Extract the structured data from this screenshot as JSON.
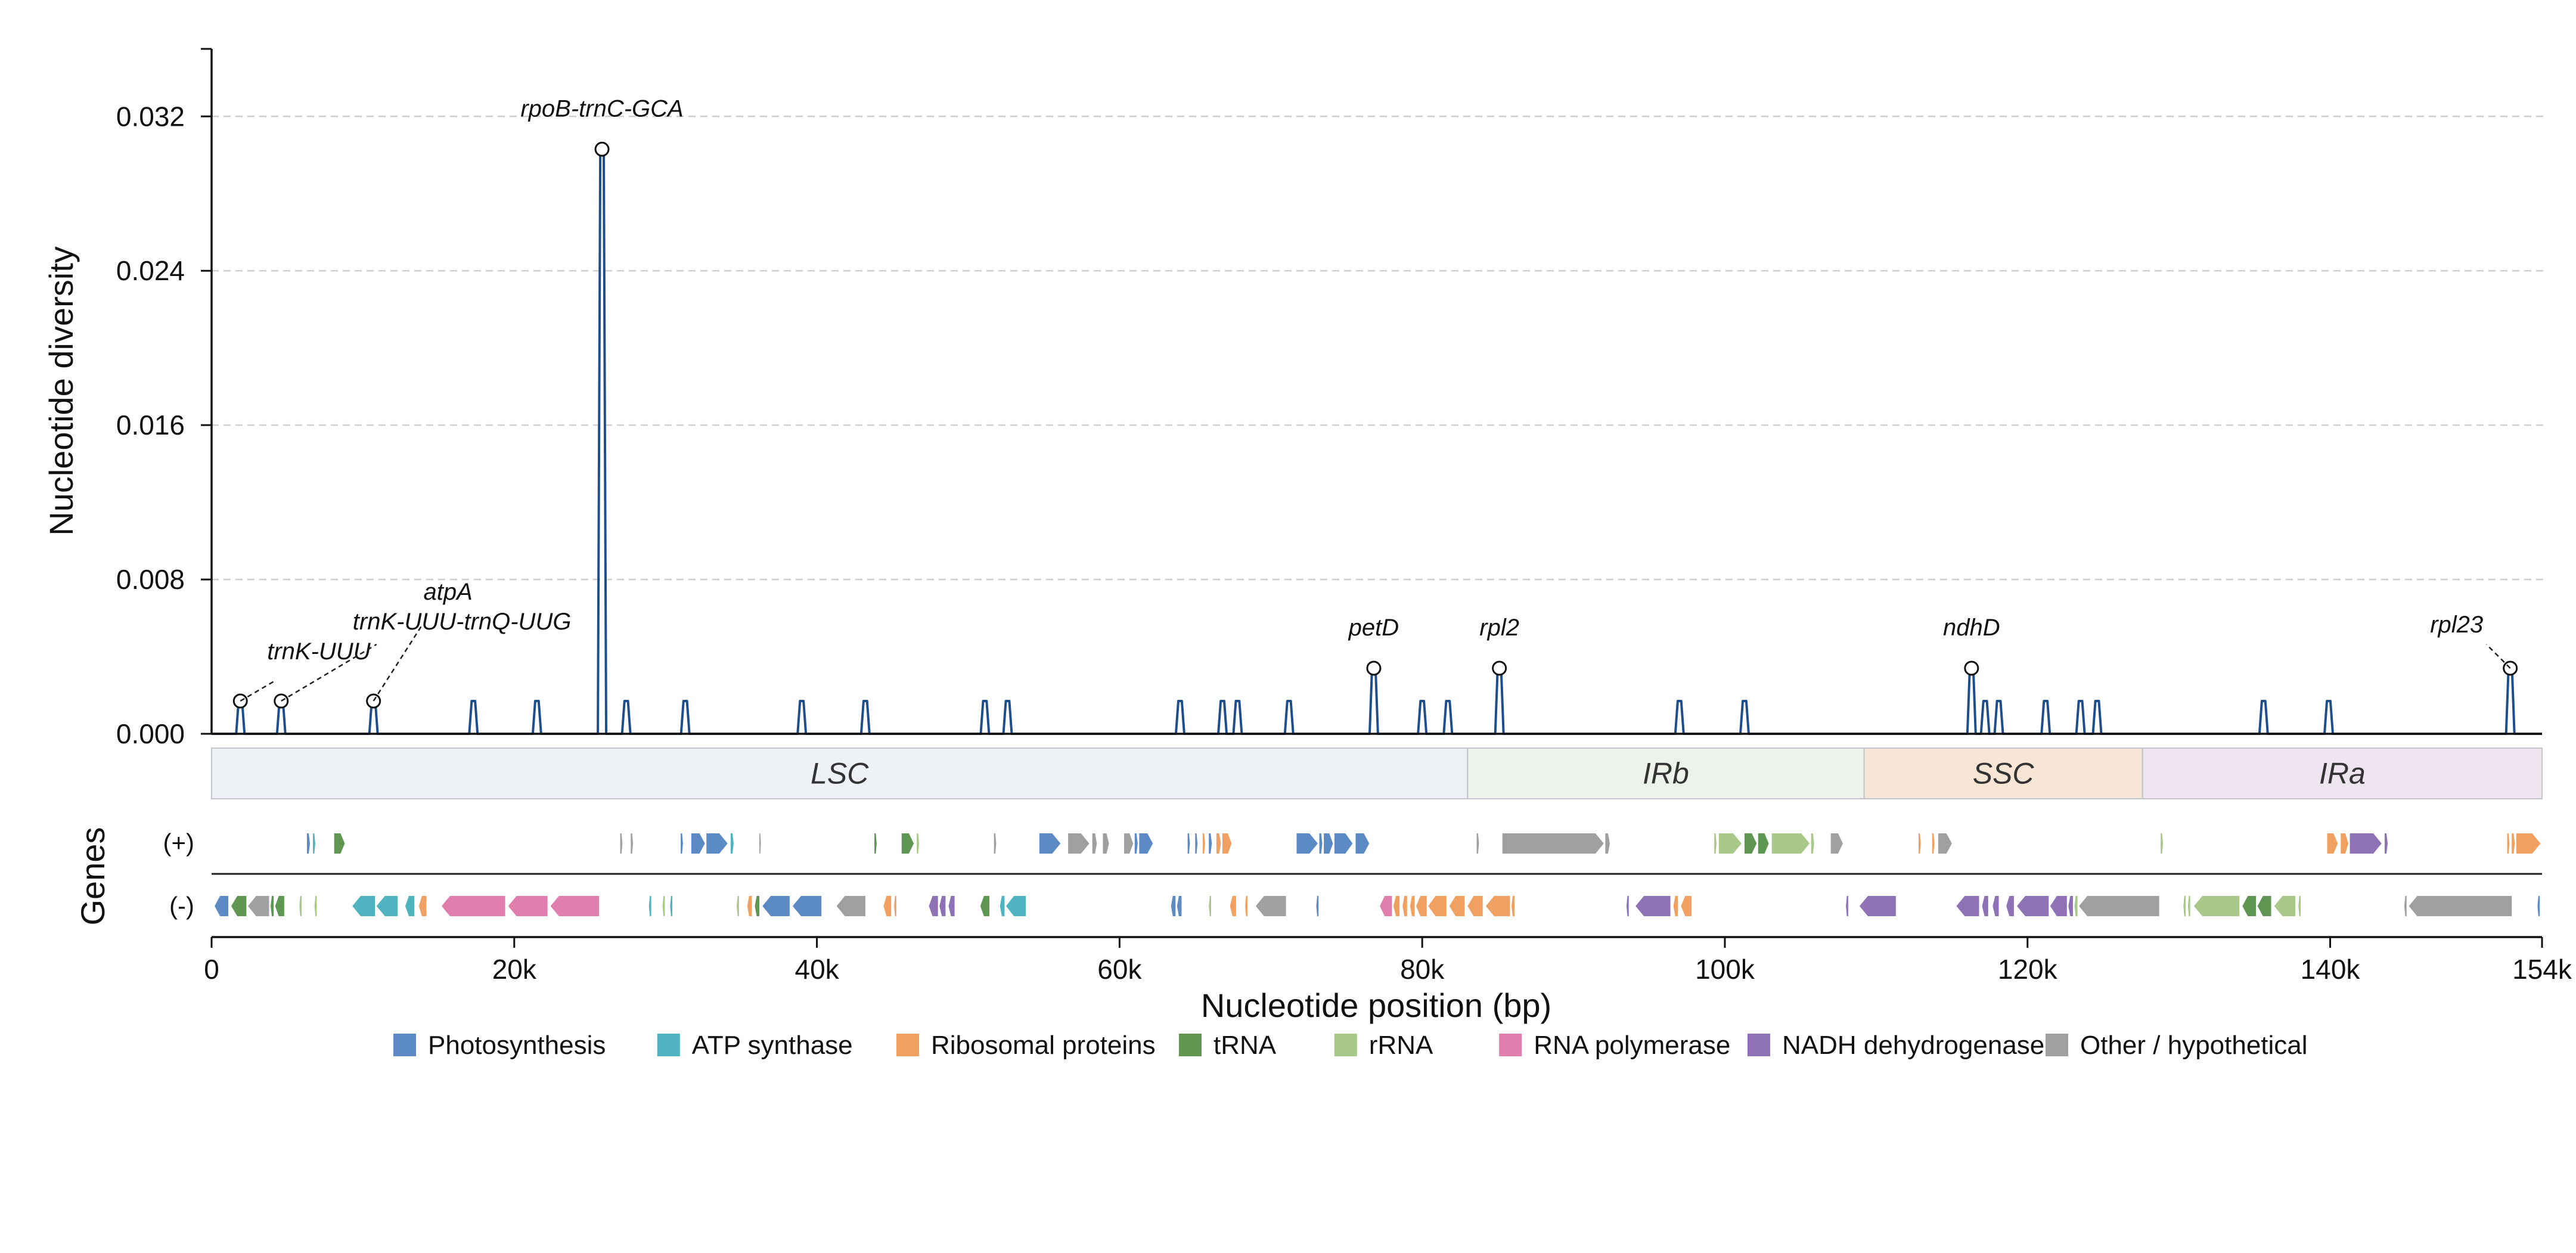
{
  "chart_data": {
    "type": "line",
    "ylabel": "Nucleotide diversity",
    "xlabel": "Nucleotide position (bp)",
    "ylim": [
      0,
      0.0355
    ],
    "xlim": [
      0,
      154000
    ],
    "y_ticks": [
      0.0,
      0.008,
      0.016,
      0.024,
      0.032
    ],
    "y_tick_labels": [
      "0.000",
      "0.008",
      "0.016",
      "0.024",
      "0.032"
    ],
    "x_ticks": [
      0,
      20000,
      40000,
      60000,
      80000,
      100000,
      120000,
      140000,
      154000
    ],
    "x_tick_labels": [
      "0",
      "20k",
      "40k",
      "60k",
      "80k",
      "100k",
      "120k",
      "140k",
      "154k"
    ],
    "grid_y": true,
    "series": [
      {
        "color": "#1f4e8c",
        "peaks": [
          {
            "x": 1900,
            "y": 0.0017
          },
          {
            "x": 4600,
            "y": 0.0017
          },
          {
            "x": 10700,
            "y": 0.0017
          },
          {
            "x": 17300,
            "y": 0.0017
          },
          {
            "x": 21500,
            "y": 0.0017
          },
          {
            "x": 25800,
            "y": 0.0303
          },
          {
            "x": 27400,
            "y": 0.0017
          },
          {
            "x": 31300,
            "y": 0.0017
          },
          {
            "x": 39000,
            "y": 0.0017
          },
          {
            "x": 43200,
            "y": 0.0017
          },
          {
            "x": 51100,
            "y": 0.0017
          },
          {
            "x": 52600,
            "y": 0.0017
          },
          {
            "x": 64000,
            "y": 0.0017
          },
          {
            "x": 66800,
            "y": 0.0017
          },
          {
            "x": 67800,
            "y": 0.0017
          },
          {
            "x": 71200,
            "y": 0.0017
          },
          {
            "x": 76800,
            "y": 0.0034
          },
          {
            "x": 80000,
            "y": 0.0017
          },
          {
            "x": 81700,
            "y": 0.0017
          },
          {
            "x": 85100,
            "y": 0.0034
          },
          {
            "x": 97000,
            "y": 0.0017
          },
          {
            "x": 101300,
            "y": 0.0017
          },
          {
            "x": 116300,
            "y": 0.0034
          },
          {
            "x": 117200,
            "y": 0.0017
          },
          {
            "x": 118100,
            "y": 0.0017
          },
          {
            "x": 121200,
            "y": 0.0017
          },
          {
            "x": 123500,
            "y": 0.0017
          },
          {
            "x": 124600,
            "y": 0.0017
          },
          {
            "x": 135600,
            "y": 0.0017
          },
          {
            "x": 139900,
            "y": 0.0017
          },
          {
            "x": 151900,
            "y": 0.0034
          }
        ]
      }
    ],
    "annotations": [
      {
        "label": "trnK-UUU",
        "x": 1900,
        "y": 0.0017
      },
      {
        "label": "trnK-UUU-trnQ-UUG",
        "x": 4600,
        "y": 0.0017
      },
      {
        "label": "atpA",
        "x": 10700,
        "y": 0.0017
      },
      {
        "label": "rpoB-trnC-GCA",
        "x": 25800,
        "y": 0.0303
      },
      {
        "label": "petD",
        "x": 76800,
        "y": 0.0034
      },
      {
        "label": "rpl2",
        "x": 85100,
        "y": 0.0034
      },
      {
        "label": "ndhD",
        "x": 116300,
        "y": 0.0034
      },
      {
        "label": "rpl23",
        "x": 151900,
        "y": 0.0034
      }
    ],
    "regions": [
      {
        "name": "LSC",
        "start": 0,
        "end": 83000,
        "color": "#eef2f6"
      },
      {
        "name": "IRb",
        "start": 83000,
        "end": 109200,
        "color": "#edf2ea"
      },
      {
        "name": "SSC",
        "start": 109200,
        "end": 127600,
        "color": "#f7e6d6"
      },
      {
        "name": "IRa",
        "start": 127600,
        "end": 154000,
        "color": "#efe5f0"
      }
    ],
    "genes_label": "Genes",
    "strand_labels": [
      "(+)",
      "(-)"
    ],
    "gene_categories": [
      {
        "name": "Photosynthesis",
        "color": "#5b8ac4"
      },
      {
        "name": "ATP synthase",
        "color": "#4fb3c0"
      },
      {
        "name": "Ribosomal proteins",
        "color": "#f0a060"
      },
      {
        "name": "tRNA",
        "color": "#5e9652"
      },
      {
        "name": "rRNA",
        "color": "#a9c98a"
      },
      {
        "name": "RNA polymerase",
        "color": "#e07fae"
      },
      {
        "name": "NADH dehydrogenase",
        "color": "#8e72b5"
      },
      {
        "name": "Other / hypothetical",
        "color": "#a0a0a0"
      }
    ],
    "genes_plus": [
      {
        "s": 6300,
        "e": 6500,
        "c": 0
      },
      {
        "s": 6700,
        "e": 6850,
        "c": 1
      },
      {
        "s": 8100,
        "e": 8800,
        "c": 3
      },
      {
        "s": 27000,
        "e": 27150,
        "c": 7
      },
      {
        "s": 27700,
        "e": 27850,
        "c": 7
      },
      {
        "s": 31000,
        "e": 31150,
        "c": 0
      },
      {
        "s": 31700,
        "e": 32600,
        "c": 0
      },
      {
        "s": 32700,
        "e": 34100,
        "c": 0
      },
      {
        "s": 34300,
        "e": 34500,
        "c": 1
      },
      {
        "s": 36200,
        "e": 36300,
        "c": 7
      },
      {
        "s": 43800,
        "e": 43950,
        "c": 3
      },
      {
        "s": 45600,
        "e": 46400,
        "c": 3
      },
      {
        "s": 46600,
        "e": 46750,
        "c": 4
      },
      {
        "s": 51700,
        "e": 51850,
        "c": 7
      },
      {
        "s": 54700,
        "e": 56100,
        "c": 0
      },
      {
        "s": 56600,
        "e": 58000,
        "c": 7
      },
      {
        "s": 58200,
        "e": 58500,
        "c": 7
      },
      {
        "s": 58900,
        "e": 59300,
        "c": 7
      },
      {
        "s": 60300,
        "e": 60900,
        "c": 7
      },
      {
        "s": 61000,
        "e": 61200,
        "c": 0
      },
      {
        "s": 61300,
        "e": 62200,
        "c": 0
      },
      {
        "s": 64500,
        "e": 64650,
        "c": 0
      },
      {
        "s": 65000,
        "e": 65150,
        "c": 0
      },
      {
        "s": 65500,
        "e": 65650,
        "c": 2
      },
      {
        "s": 65900,
        "e": 66100,
        "c": 0
      },
      {
        "s": 66400,
        "e": 66700,
        "c": 2
      },
      {
        "s": 66800,
        "e": 67400,
        "c": 2
      },
      {
        "s": 71700,
        "e": 73100,
        "c": 0
      },
      {
        "s": 73200,
        "e": 73400,
        "c": 0
      },
      {
        "s": 73500,
        "e": 74100,
        "c": 0
      },
      {
        "s": 74200,
        "e": 75400,
        "c": 0
      },
      {
        "s": 75600,
        "e": 76500,
        "c": 0
      },
      {
        "s": 83600,
        "e": 83750,
        "c": 7
      },
      {
        "s": 85300,
        "e": 92000,
        "c": 7
      },
      {
        "s": 92100,
        "e": 92400,
        "c": 7
      },
      {
        "s": 99300,
        "e": 99450,
        "c": 4
      },
      {
        "s": 99600,
        "e": 101100,
        "c": 4
      },
      {
        "s": 101300,
        "e": 102100,
        "c": 3
      },
      {
        "s": 102200,
        "e": 102900,
        "c": 3
      },
      {
        "s": 103100,
        "e": 105600,
        "c": 4
      },
      {
        "s": 105700,
        "e": 105900,
        "c": 4
      },
      {
        "s": 107000,
        "e": 107800,
        "c": 7
      },
      {
        "s": 112800,
        "e": 112950,
        "c": 2
      },
      {
        "s": 113700,
        "e": 113850,
        "c": 2
      },
      {
        "s": 114100,
        "e": 115000,
        "c": 7
      },
      {
        "s": 128800,
        "e": 128950,
        "c": 4
      },
      {
        "s": 139800,
        "e": 140500,
        "c": 2
      },
      {
        "s": 140700,
        "e": 141200,
        "c": 2
      },
      {
        "s": 141300,
        "e": 143400,
        "c": 6
      },
      {
        "s": 143600,
        "e": 143800,
        "c": 6
      },
      {
        "s": 151700,
        "e": 151850,
        "c": 2
      },
      {
        "s": 152000,
        "e": 152200,
        "c": 2
      },
      {
        "s": 152300,
        "e": 153900,
        "c": 2
      }
    ],
    "genes_minus": [
      {
        "s": 200,
        "e": 1100,
        "c": 0
      },
      {
        "s": 1300,
        "e": 2300,
        "c": 3
      },
      {
        "s": 2400,
        "e": 3800,
        "c": 7
      },
      {
        "s": 3900,
        "e": 4100,
        "c": 3
      },
      {
        "s": 4200,
        "e": 4800,
        "c": 3
      },
      {
        "s": 5800,
        "e": 5950,
        "c": 4
      },
      {
        "s": 6800,
        "e": 6950,
        "c": 4
      },
      {
        "s": 9300,
        "e": 10800,
        "c": 1
      },
      {
        "s": 10900,
        "e": 12300,
        "c": 1
      },
      {
        "s": 12800,
        "e": 13400,
        "c": 1
      },
      {
        "s": 13700,
        "e": 14200,
        "c": 2
      },
      {
        "s": 15200,
        "e": 19400,
        "c": 5
      },
      {
        "s": 19600,
        "e": 22200,
        "c": 5
      },
      {
        "s": 22400,
        "e": 25600,
        "c": 5
      },
      {
        "s": 28900,
        "e": 29050,
        "c": 1
      },
      {
        "s": 29800,
        "e": 29950,
        "c": 4
      },
      {
        "s": 30300,
        "e": 30450,
        "c": 1
      },
      {
        "s": 34700,
        "e": 34850,
        "c": 4
      },
      {
        "s": 35400,
        "e": 35700,
        "c": 2
      },
      {
        "s": 35900,
        "e": 36200,
        "c": 3
      },
      {
        "s": 36400,
        "e": 38200,
        "c": 0
      },
      {
        "s": 38400,
        "e": 40300,
        "c": 0
      },
      {
        "s": 41300,
        "e": 43200,
        "c": 7
      },
      {
        "s": 44400,
        "e": 44900,
        "c": 2
      },
      {
        "s": 45100,
        "e": 45250,
        "c": 2
      },
      {
        "s": 47400,
        "e": 48000,
        "c": 6
      },
      {
        "s": 48100,
        "e": 48500,
        "c": 6
      },
      {
        "s": 48700,
        "e": 49100,
        "c": 6
      },
      {
        "s": 50800,
        "e": 51400,
        "c": 3
      },
      {
        "s": 52100,
        "e": 52400,
        "c": 1
      },
      {
        "s": 52500,
        "e": 53800,
        "c": 1
      },
      {
        "s": 63400,
        "e": 63700,
        "c": 0
      },
      {
        "s": 63800,
        "e": 64100,
        "c": 0
      },
      {
        "s": 65900,
        "e": 66050,
        "c": 4
      },
      {
        "s": 67300,
        "e": 67700,
        "c": 2
      },
      {
        "s": 68300,
        "e": 68450,
        "c": 2
      },
      {
        "s": 69000,
        "e": 71000,
        "c": 7
      },
      {
        "s": 73000,
        "e": 73150,
        "c": 0
      },
      {
        "s": 77200,
        "e": 78000,
        "c": 5
      },
      {
        "s": 78100,
        "e": 78500,
        "c": 2
      },
      {
        "s": 78700,
        "e": 79000,
        "c": 2
      },
      {
        "s": 79200,
        "e": 79500,
        "c": 2
      },
      {
        "s": 79600,
        "e": 80300,
        "c": 2
      },
      {
        "s": 80400,
        "e": 81600,
        "c": 2
      },
      {
        "s": 81800,
        "e": 82800,
        "c": 2
      },
      {
        "s": 83000,
        "e": 84000,
        "c": 2
      },
      {
        "s": 84200,
        "e": 85800,
        "c": 2
      },
      {
        "s": 85900,
        "e": 86100,
        "c": 2
      },
      {
        "s": 93500,
        "e": 93650,
        "c": 6
      },
      {
        "s": 94100,
        "e": 96400,
        "c": 6
      },
      {
        "s": 96600,
        "e": 96900,
        "c": 2
      },
      {
        "s": 97100,
        "e": 97800,
        "c": 2
      },
      {
        "s": 108000,
        "e": 108150,
        "c": 6
      },
      {
        "s": 108900,
        "e": 111300,
        "c": 6
      },
      {
        "s": 115300,
        "e": 116800,
        "c": 6
      },
      {
        "s": 117000,
        "e": 117400,
        "c": 6
      },
      {
        "s": 117700,
        "e": 118100,
        "c": 6
      },
      {
        "s": 118600,
        "e": 119100,
        "c": 6
      },
      {
        "s": 119300,
        "e": 121400,
        "c": 6
      },
      {
        "s": 121500,
        "e": 122600,
        "c": 6
      },
      {
        "s": 122700,
        "e": 123000,
        "c": 6
      },
      {
        "s": 123100,
        "e": 123300,
        "c": 4
      },
      {
        "s": 123400,
        "e": 128700,
        "c": 7
      },
      {
        "s": 130300,
        "e": 130450,
        "c": 4
      },
      {
        "s": 130600,
        "e": 130750,
        "c": 4
      },
      {
        "s": 131000,
        "e": 134000,
        "c": 4
      },
      {
        "s": 134200,
        "e": 135100,
        "c": 3
      },
      {
        "s": 135200,
        "e": 136100,
        "c": 3
      },
      {
        "s": 136300,
        "e": 137700,
        "c": 4
      },
      {
        "s": 137900,
        "e": 138050,
        "c": 4
      },
      {
        "s": 144900,
        "e": 145050,
        "c": 7
      },
      {
        "s": 145200,
        "e": 152000,
        "c": 7
      },
      {
        "s": 153700,
        "e": 153850,
        "c": 0
      }
    ]
  }
}
